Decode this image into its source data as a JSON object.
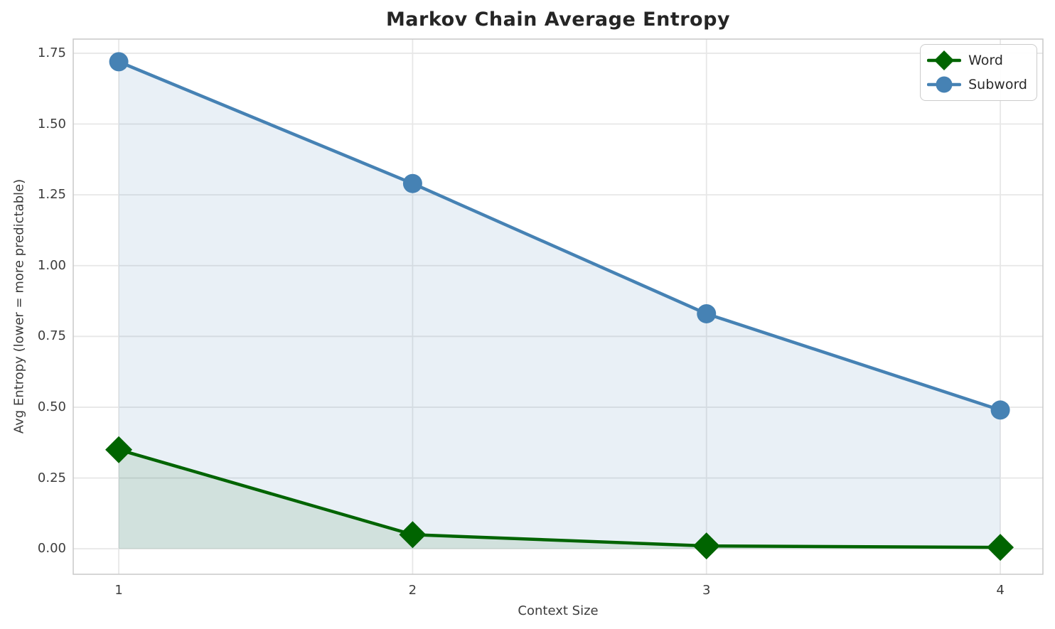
{
  "chart_data": {
    "type": "line",
    "title": "Markov Chain Average Entropy",
    "xlabel": "Context Size",
    "ylabel": "Avg Entropy (lower = more predictable)",
    "x": [
      1,
      2,
      3,
      4
    ],
    "series": [
      {
        "name": "Word",
        "values": [
          0.35,
          0.05,
          0.01,
          0.005
        ],
        "color": "#006400",
        "marker": "diamond",
        "fill_opacity": 0.1
      },
      {
        "name": "Subword",
        "values": [
          1.72,
          1.29,
          0.83,
          0.49
        ],
        "color": "#4682B4",
        "marker": "circle",
        "fill_opacity": 0.12
      }
    ],
    "xticks": [
      "1",
      "2",
      "3",
      "4"
    ],
    "xtick_values": [
      1,
      2,
      3,
      4
    ],
    "yticks": [
      "0.00",
      "0.25",
      "0.50",
      "0.75",
      "1.00",
      "1.25",
      "1.50",
      "1.75"
    ],
    "ytick_values": [
      0.0,
      0.25,
      0.5,
      0.75,
      1.0,
      1.25,
      1.5,
      1.75
    ],
    "xlim": [
      0.845,
      4.145
    ],
    "ylim": [
      -0.09,
      1.8
    ],
    "grid": true,
    "area_fill_baseline": 0,
    "legend_position": "upper right",
    "colors": {
      "grid": "#E7E7E7",
      "spine": "#C9C9C9",
      "title_text": "#252525",
      "tick_text": "#3D3D3D"
    }
  }
}
